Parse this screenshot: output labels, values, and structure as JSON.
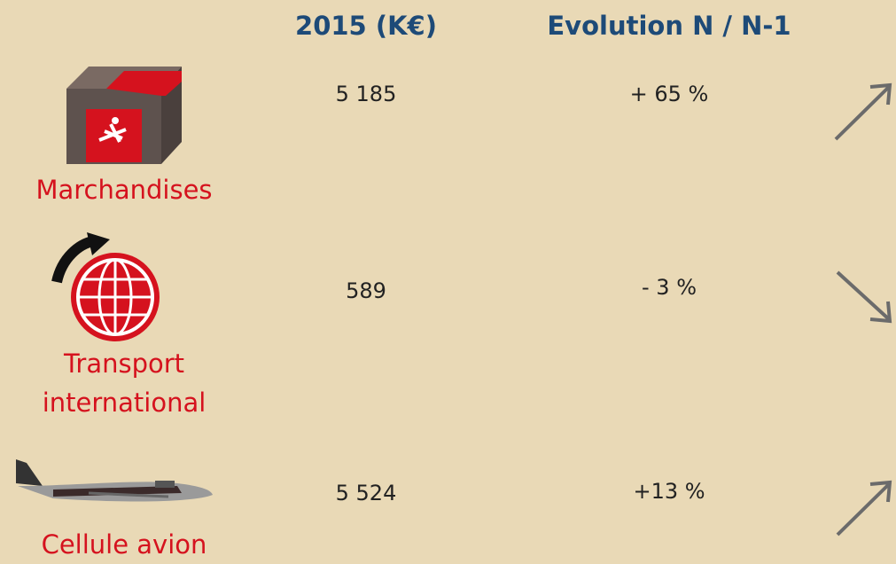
{
  "table": {
    "header": [
      "2015 (K€)",
      "Evolution N / N-1"
    ],
    "rows": [
      [
        "Marchandises",
        "5 185",
        "+ 65 %"
      ],
      [
        "Transport international",
        "589",
        "- 3 %"
      ],
      [
        "Cellule avion",
        "5 524",
        "+13 %"
      ]
    ]
  }
}
